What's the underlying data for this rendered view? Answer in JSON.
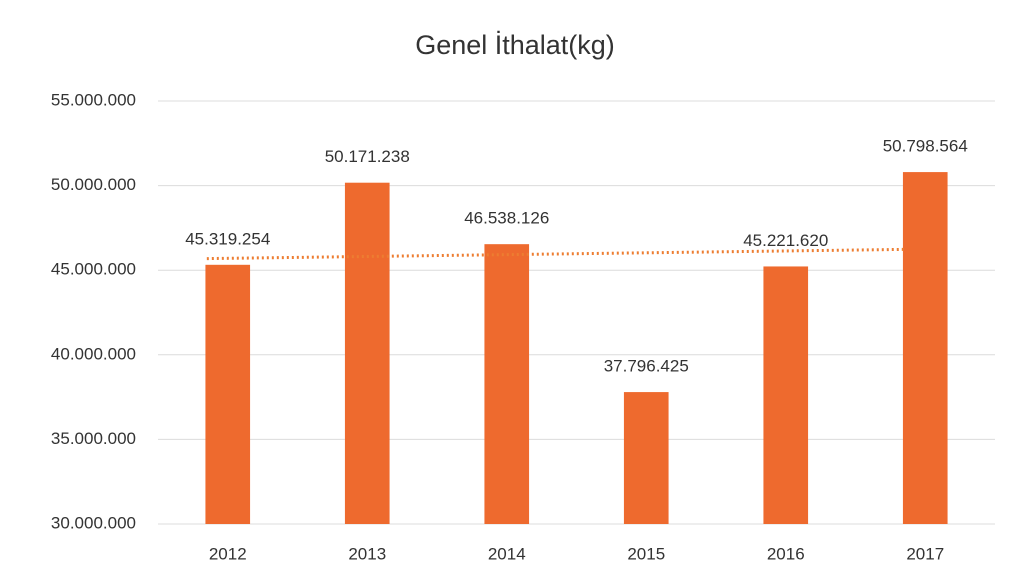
{
  "chart_data": {
    "type": "bar",
    "title": "Genel İthalat(kg)",
    "categories": [
      "2012",
      "2013",
      "2014",
      "2015",
      "2016",
      "2017"
    ],
    "values": [
      45319254,
      50171238,
      46538126,
      37796425,
      45221620,
      50798564
    ],
    "value_labels": [
      "45.319.254",
      "50.171.238",
      "46.538.126",
      "37.796.425",
      "45.221.620",
      "50.798.564"
    ],
    "color": "#ee6a2e",
    "ylim": [
      30000000,
      55000000
    ],
    "yticks": [
      {
        "value": 30000000,
        "label": "30.000.000"
      },
      {
        "value": 35000000,
        "label": "35.000.000"
      },
      {
        "value": 40000000,
        "label": "40.000.000"
      },
      {
        "value": 45000000,
        "label": "45.000.000"
      },
      {
        "value": 50000000,
        "label": "50.000.000"
      },
      {
        "value": 55000000,
        "label": "55.000.000"
      }
    ],
    "grid": true,
    "trendline": "linear",
    "trendline_color": "#ed7d31"
  }
}
